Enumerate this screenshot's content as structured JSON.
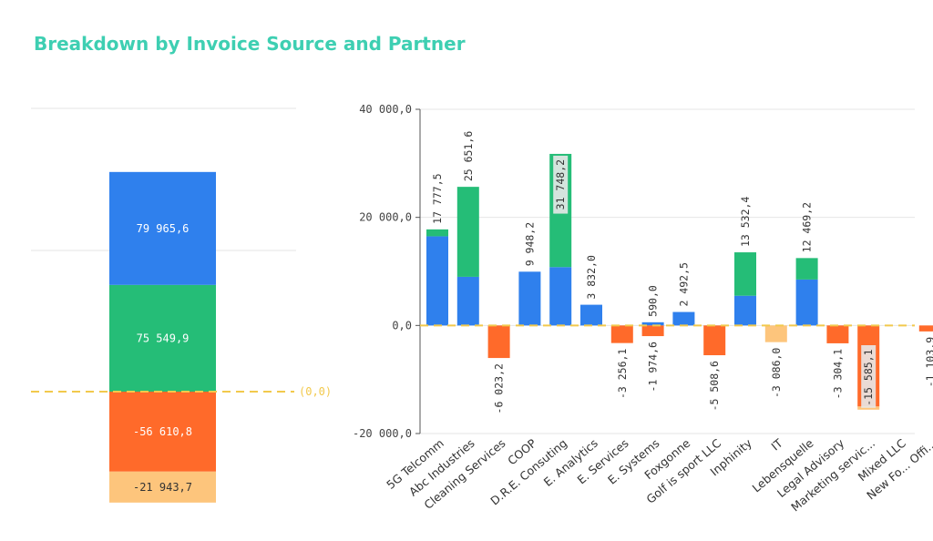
{
  "title": "Breakdown by Invoice Source and Partner",
  "colors": {
    "title": "#3ecfb2",
    "green": "#25bd77",
    "blue": "#2f80ed",
    "orange": "#ff6a2a",
    "light_orange": "#fdc57c",
    "reference_line": "#f2c94c",
    "grid": "#e6e6e6",
    "axis": "#555555"
  },
  "chart_data": [
    {
      "type": "bar",
      "stacked": true,
      "series": [
        {
          "color": "#25bd77",
          "value": 75549.9,
          "label": "75 549,9"
        },
        {
          "color": "#2f80ed",
          "value": 79965.6,
          "label": "79 965,6"
        },
        {
          "color": "#ff6a2a",
          "value": -56610.8,
          "label": "-56 610,8"
        },
        {
          "color": "#fdc57c",
          "value": -21943.7,
          "label": "-21 943,7"
        }
      ],
      "reference_line": {
        "value": 0,
        "label": "(0,0)"
      },
      "grid": true
    },
    {
      "type": "bar",
      "stacked": true,
      "ylim": [
        -20000,
        40000
      ],
      "yticks": [
        {
          "value": 40000,
          "label": "40 000,0"
        },
        {
          "value": 20000,
          "label": "20 000,0"
        },
        {
          "value": 0,
          "label": "0,0"
        },
        {
          "value": -20000,
          "label": "-20 000,0"
        }
      ],
      "categories": [
        "5G Telcomm",
        "Abc Industries",
        "Cleaning Services",
        "COOP",
        "D.R.E. Consuting",
        "E. Analytics",
        "E. Services",
        "E. Systems",
        "Foxgonne",
        "Golf is sport LLC",
        "Inphinity",
        "IT",
        "Lebensquelle",
        "Legal Advisory",
        "Marketing servic...",
        "Mixed LLC",
        "New Fo... Offi..."
      ],
      "series": [
        {
          "color": "#2f80ed",
          "values": [
            16500,
            9000,
            0,
            9948.2,
            10800,
            3832.0,
            0,
            590.0,
            2492.5,
            0,
            5500,
            0,
            8500,
            0,
            0,
            0,
            0
          ]
        },
        {
          "color": "#25bd77",
          "values": [
            1277.5,
            16651.6,
            0,
            0,
            20948.2,
            0,
            0,
            0,
            0,
            0,
            8032.4,
            0,
            3969.2,
            0,
            0,
            0,
            0
          ]
        },
        {
          "color": "#ff6a2a",
          "values": [
            0,
            0,
            -6023.2,
            0,
            0,
            0,
            -3256.1,
            -1974.6,
            0,
            -5508.6,
            0,
            0,
            0,
            -3304.1,
            -15000,
            0,
            -1103.9
          ]
        },
        {
          "color": "#fdc57c",
          "values": [
            0,
            0,
            0,
            0,
            0,
            0,
            0,
            0,
            0,
            0,
            0,
            -3086.0,
            0,
            0,
            -585.1,
            0,
            0
          ]
        }
      ],
      "totals_pos": [
        "17 777,5",
        "25 651,6",
        "",
        "9 948,2",
        "31 748,2",
        "3 832,0",
        "",
        "590,0",
        "2 492,5",
        "",
        "13 532,4",
        "",
        "12 469,2",
        "",
        "",
        "",
        ""
      ],
      "totals_neg": [
        "",
        "",
        "-6 023,2",
        "",
        "",
        "",
        "-3 256,1",
        "-1 974,6",
        "",
        "-5 508,6",
        "",
        "-3 086,0",
        "",
        "-3 304,1",
        "-15 585,1",
        "",
        "-1 103,9"
      ],
      "reference_line": {
        "value": 0
      },
      "grid": true
    }
  ]
}
